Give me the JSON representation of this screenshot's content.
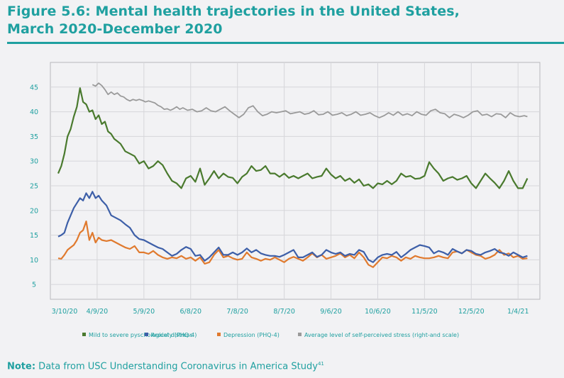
{
  "figure": {
    "title_line1": "Figure 5.6: Mental health trajectories in the United States,",
    "title_line2": "March 2020-December 2020",
    "note_label": "Note:",
    "note_text": " Data from USC Understanding Coronavirus in America Study",
    "note_ref": "41"
  },
  "chart_data": {
    "type": "line",
    "title": "Mental health trajectories in the United States, March 2020-December 2020",
    "xlabel": "",
    "ylabel": "",
    "x_unit": "days since 3/10/20",
    "xlim": [
      0,
      314
    ],
    "ylim": [
      2,
      50
    ],
    "grid": true,
    "legend_position": "bottom",
    "y_ticks": [
      5,
      10,
      15,
      20,
      25,
      30,
      35,
      40,
      45
    ],
    "x_ticks": [
      {
        "day": 0,
        "label": "3/10/20"
      },
      {
        "day": 30,
        "label": "4/9/20"
      },
      {
        "day": 60,
        "label": "5/9/20"
      },
      {
        "day": 90,
        "label": "6/8/20"
      },
      {
        "day": 120,
        "label": "7/8/20"
      },
      {
        "day": 150,
        "label": "8/7/20"
      },
      {
        "day": 180,
        "label": "9/6/20"
      },
      {
        "day": 210,
        "label": "10/6/20"
      },
      {
        "day": 240,
        "label": "11/5/20"
      },
      {
        "day": 270,
        "label": "12/5/20"
      },
      {
        "day": 300,
        "label": "1/4/21"
      }
    ],
    "series": [
      {
        "name": "Mild to severe pyschological distress",
        "color": "#4a7a2e",
        "x": [
          5,
          7,
          9,
          11,
          13,
          15,
          17,
          19,
          21,
          23,
          25,
          27,
          29,
          31,
          33,
          35,
          37,
          39,
          41,
          43,
          45,
          48,
          51,
          54,
          57,
          60,
          63,
          66,
          69,
          72,
          75,
          78,
          81,
          84,
          87,
          90,
          93,
          96,
          99,
          102,
          105,
          108,
          111,
          114,
          117,
          120,
          123,
          126,
          129,
          132,
          135,
          138,
          141,
          144,
          147,
          150,
          153,
          156,
          159,
          162,
          165,
          168,
          171,
          174,
          177,
          180,
          183,
          186,
          189,
          192,
          195,
          198,
          201,
          204,
          207,
          210,
          213,
          216,
          219,
          222,
          225,
          228,
          231,
          234,
          237,
          240,
          243,
          246,
          249,
          252,
          255,
          258,
          261,
          264,
          267,
          270,
          273,
          276,
          279,
          282,
          285,
          288,
          291,
          294,
          297,
          300,
          303,
          306
        ],
        "values": [
          27.5,
          29,
          31.5,
          35,
          36.5,
          39,
          41,
          44.8,
          42,
          41.5,
          40,
          40.3,
          38.5,
          39.3,
          37.5,
          38,
          36,
          35.5,
          34.5,
          34,
          33.5,
          32,
          31.5,
          31,
          29.5,
          30,
          28.5,
          29,
          30,
          29.2,
          27.5,
          26,
          25.5,
          24.5,
          26.5,
          27,
          25.8,
          28.5,
          25.2,
          26.5,
          28,
          26.5,
          27.5,
          26.8,
          26.6,
          25.5,
          26.8,
          27.5,
          29,
          28,
          28.2,
          29,
          27.5,
          27.5,
          26.8,
          27.5,
          26.6,
          27,
          26.5,
          27,
          27.5,
          26.5,
          26.8,
          27,
          28.5,
          27.3,
          26.5,
          27,
          26,
          26.5,
          25.6,
          26.3,
          25,
          25.3,
          24.5,
          25.5,
          25.3,
          26,
          25.3,
          26,
          27.5,
          26.8,
          27,
          26.4,
          26.5,
          27,
          29.8,
          28.5,
          27.5,
          26,
          26.5,
          26.8,
          26.2,
          26.5,
          27,
          25.5,
          24.5,
          26,
          27.5,
          26.5,
          25.6,
          24.5,
          26,
          28,
          26,
          24.5,
          24.5,
          26.5
        ]
      },
      {
        "name": "Anxiety (PHQ-4)",
        "color": "#3d5fa8",
        "x": [
          5,
          7,
          9,
          11,
          13,
          15,
          17,
          19,
          21,
          23,
          25,
          27,
          29,
          31,
          33,
          36,
          39,
          42,
          45,
          48,
          51,
          54,
          57,
          60,
          63,
          66,
          69,
          72,
          75,
          78,
          81,
          84,
          87,
          90,
          93,
          96,
          99,
          102,
          105,
          108,
          111,
          114,
          117,
          120,
          123,
          126,
          129,
          132,
          135,
          138,
          141,
          144,
          147,
          150,
          153,
          156,
          159,
          162,
          165,
          168,
          171,
          174,
          177,
          180,
          183,
          186,
          189,
          192,
          195,
          198,
          201,
          204,
          207,
          210,
          213,
          216,
          219,
          222,
          225,
          228,
          231,
          234,
          237,
          240,
          243,
          246,
          249,
          252,
          255,
          258,
          261,
          264,
          267,
          270,
          273,
          276,
          279,
          282,
          285,
          288,
          291,
          294,
          297,
          300,
          303,
          306
        ],
        "values": [
          14.7,
          15,
          15.5,
          17.5,
          19,
          20.5,
          21.5,
          22.5,
          22,
          23.5,
          22.5,
          23.8,
          22.5,
          23,
          22,
          21,
          19,
          18.5,
          18,
          17.2,
          16.5,
          15,
          14.2,
          14,
          13.5,
          13,
          12.5,
          12.2,
          11.5,
          10.8,
          11.2,
          12,
          12.6,
          12.2,
          10.8,
          11,
          9.8,
          10.5,
          11.5,
          12.5,
          11,
          11,
          11.5,
          11,
          11.5,
          12.3,
          11.5,
          12,
          11.3,
          11,
          10.8,
          10.8,
          10.6,
          11,
          11.5,
          12,
          10.5,
          10.5,
          11,
          11.5,
          10.6,
          11,
          12,
          11.5,
          11.2,
          11.5,
          10.8,
          11.2,
          11,
          12,
          11.6,
          10,
          9.5,
          10.5,
          11,
          11.2,
          11,
          11.6,
          10.5,
          11.2,
          12,
          12.5,
          13,
          12.8,
          12.5,
          11.3,
          11.8,
          11.5,
          11,
          12.2,
          11.7,
          11.3,
          12,
          11.8,
          11.2,
          11,
          11.5,
          11.8,
          12.2,
          11.5,
          11.3,
          10.8,
          11.5,
          11,
          10.5,
          10.8
        ]
      },
      {
        "name": "Depression (PHQ-4)",
        "color": "#e07a2e",
        "x": [
          5,
          7,
          9,
          11,
          13,
          15,
          17,
          19,
          21,
          23,
          25,
          27,
          29,
          31,
          33,
          36,
          39,
          42,
          45,
          48,
          51,
          54,
          57,
          60,
          63,
          66,
          69,
          72,
          75,
          78,
          81,
          84,
          87,
          90,
          93,
          96,
          99,
          102,
          105,
          108,
          111,
          114,
          117,
          120,
          123,
          126,
          129,
          132,
          135,
          138,
          141,
          144,
          147,
          150,
          153,
          156,
          159,
          162,
          165,
          168,
          171,
          174,
          177,
          180,
          183,
          186,
          189,
          192,
          195,
          198,
          201,
          204,
          207,
          210,
          213,
          216,
          219,
          222,
          225,
          228,
          231,
          234,
          237,
          240,
          243,
          246,
          249,
          252,
          255,
          258,
          261,
          264,
          267,
          270,
          273,
          276,
          279,
          282,
          285,
          288,
          291,
          294,
          297,
          300,
          303,
          306
        ],
        "values": [
          10.3,
          10.2,
          11,
          12,
          12.5,
          13,
          14,
          15.5,
          16,
          17.8,
          14,
          15.5,
          13.5,
          14.5,
          14,
          13.8,
          14,
          13.5,
          13,
          12.5,
          12.2,
          12.8,
          11.5,
          11.5,
          11.2,
          11.8,
          11,
          10.5,
          10.2,
          10.5,
          10.3,
          10.8,
          10.2,
          10.5,
          9.8,
          10.5,
          9.2,
          9.5,
          11,
          12,
          10.5,
          10.8,
          10.3,
          10,
          10.2,
          11.5,
          10.5,
          10.2,
          9.8,
          10.2,
          10,
          10.5,
          10,
          9.5,
          10.2,
          10.6,
          10.2,
          9.8,
          10.5,
          11.3,
          10.5,
          11,
          10.2,
          10.5,
          10.8,
          11.3,
          10.5,
          11,
          10.3,
          11.5,
          10.5,
          9,
          8.5,
          9.5,
          10.5,
          10.3,
          10.8,
          10.5,
          9.8,
          10.5,
          10.2,
          10.8,
          10.5,
          10.3,
          10.3,
          10.5,
          10.8,
          10.5,
          10.3,
          11.5,
          11.7,
          11.3,
          12,
          11.5,
          11,
          10.8,
          10.2,
          10.5,
          11,
          12,
          11,
          11.3,
          10.5,
          10.8,
          10.2,
          10.3
        ]
      },
      {
        "name": "Average level of self-perceived stress (right-and scale)",
        "color": "#9a9a9a",
        "x": [
          27,
          29,
          31,
          33,
          35,
          37,
          39,
          41,
          43,
          45,
          47,
          49,
          51,
          53,
          55,
          57,
          59,
          61,
          63,
          65,
          67,
          69,
          71,
          73,
          75,
          77,
          79,
          81,
          83,
          85,
          88,
          91,
          94,
          97,
          100,
          103,
          106,
          109,
          112,
          115,
          118,
          121,
          124,
          127,
          130,
          133,
          136,
          139,
          142,
          145,
          148,
          151,
          154,
          157,
          160,
          163,
          166,
          169,
          172,
          175,
          178,
          181,
          184,
          187,
          190,
          193,
          196,
          199,
          202,
          205,
          208,
          211,
          214,
          217,
          220,
          223,
          226,
          229,
          232,
          235,
          238,
          241,
          244,
          247,
          250,
          253,
          256,
          259,
          262,
          265,
          268,
          271,
          274,
          277,
          280,
          283,
          286,
          289,
          292,
          295,
          298,
          301,
          304,
          306
        ],
        "values": [
          45.5,
          45.2,
          45.8,
          45.3,
          44.5,
          43.5,
          44,
          43.5,
          43.8,
          43.2,
          43,
          42.5,
          42.2,
          42.5,
          42.3,
          42.5,
          42.3,
          42,
          42.2,
          42,
          41.8,
          41.3,
          41,
          40.5,
          40.6,
          40.3,
          40.6,
          41,
          40.5,
          40.8,
          40.3,
          40.5,
          40,
          40.2,
          40.8,
          40.2,
          40,
          40.5,
          41,
          40.2,
          39.5,
          38.8,
          39.5,
          40.8,
          41.2,
          40,
          39.2,
          39.5,
          40,
          39.8,
          40,
          40.2,
          39.6,
          39.8,
          40,
          39.5,
          39.7,
          40.2,
          39.4,
          39.5,
          40,
          39.3,
          39.5,
          39.8,
          39.2,
          39.5,
          40,
          39.3,
          39.5,
          39.8,
          39.2,
          38.8,
          39.2,
          39.8,
          39.3,
          40,
          39.3,
          39.6,
          39.2,
          40,
          39.5,
          39.3,
          40.2,
          40.5,
          39.8,
          39.6,
          38.8,
          39.5,
          39.2,
          38.8,
          39.3,
          40,
          40.2,
          39.3,
          39.5,
          39,
          39.6,
          39.5,
          38.8,
          39.8,
          39.2,
          39,
          39.2,
          39
        ]
      }
    ]
  }
}
